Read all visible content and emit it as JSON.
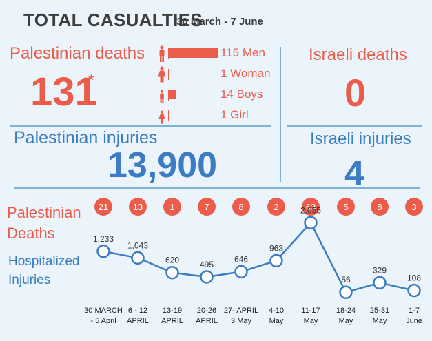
{
  "header": {
    "title": "TOTAL CASUALTIES",
    "date_range": "30 March - 7 June"
  },
  "palestinian_deaths": {
    "label": "Palestinian deaths",
    "total": "131",
    "asterisk": "*",
    "breakdown": [
      {
        "label": "115 Men",
        "value": 115,
        "icon": "male-figure-icon"
      },
      {
        "label": "1 Woman",
        "value": 1,
        "icon": "female-figure-icon"
      },
      {
        "label": "14 Boys",
        "value": 14,
        "icon": "boy-figure-icon"
      },
      {
        "label": "1 Girl",
        "value": 1,
        "icon": "girl-figure-icon"
      }
    ]
  },
  "israeli_deaths": {
    "label": "Israeli deaths",
    "total": "0"
  },
  "palestinian_injuries": {
    "label": "Palestinian injuries",
    "total": "13,900"
  },
  "israeli_injuries": {
    "label": "Israeli injuries",
    "total": "4"
  },
  "colors": {
    "red": "#ec5c4b",
    "blue": "#3b7cc2",
    "background": "#eaf4fa",
    "divider": "#7ab3d7",
    "title": "#3d3d3d"
  },
  "chart_data": {
    "type": "line",
    "row_labels": {
      "deaths": [
        "Palestinian",
        "Deaths"
      ],
      "injuries": [
        "Hospitalized",
        "Injuries"
      ]
    },
    "categories": [
      [
        "30 MARCH",
        "- 5 April"
      ],
      [
        "6 - 12",
        "APRIL"
      ],
      [
        "13-19",
        "APRIL"
      ],
      [
        "20-26",
        "APRIL"
      ],
      [
        "27- APRIL",
        "3 May"
      ],
      [
        "4-10",
        "May"
      ],
      [
        "11-17",
        "May"
      ],
      [
        "18-24",
        "May"
      ],
      [
        "25-31",
        "May"
      ],
      [
        "1-7",
        "June"
      ]
    ],
    "deaths": [
      21,
      13,
      1,
      7,
      8,
      2,
      63,
      5,
      8,
      3
    ],
    "injuries": [
      1233,
      1043,
      620,
      495,
      646,
      963,
      2055,
      56,
      329,
      108
    ],
    "injury_labels": [
      "1,233",
      "1,043",
      "620",
      "495",
      "646",
      "963",
      "2,055",
      "56",
      "329",
      "108"
    ]
  }
}
